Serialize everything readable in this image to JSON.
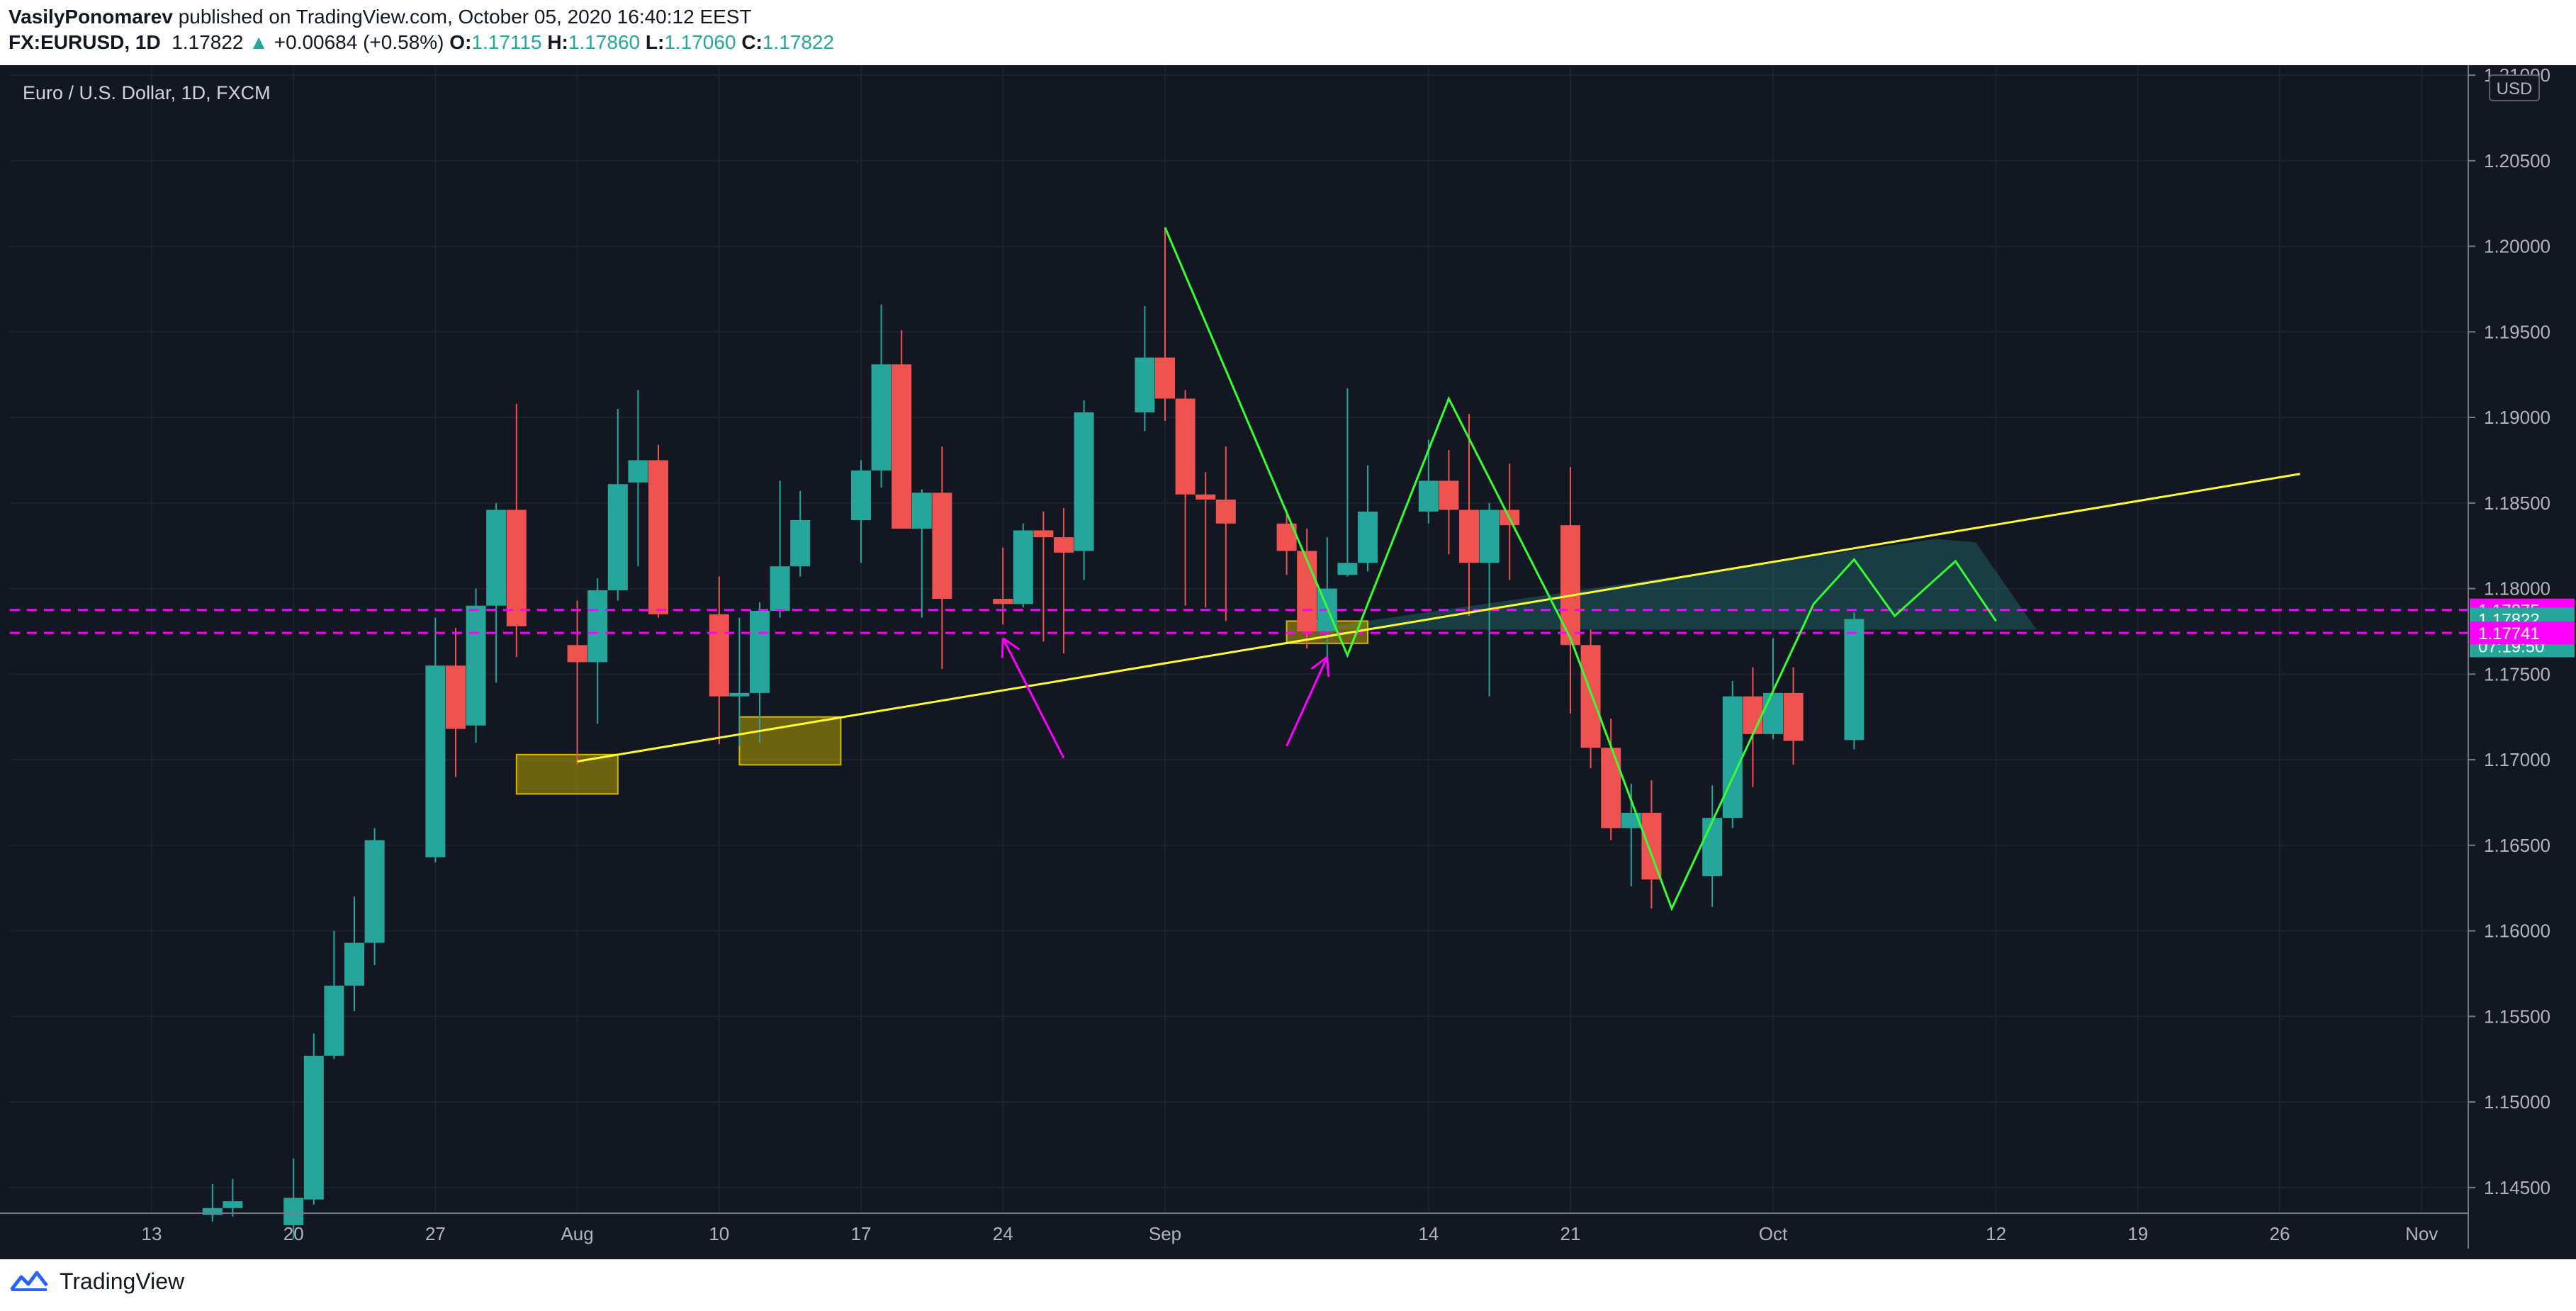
{
  "header": {
    "author": "VasilyPonomarev",
    "published_text": "published on TradingView.com, October 05, 2020 16:40:12 EEST",
    "symbol": "FX:EURUSD, 1D",
    "last": "1.17822",
    "change_arrow": "▲",
    "change": "+0.00684 (+0.58%)",
    "o_label": "O:",
    "o": "1.17115",
    "h_label": "H:",
    "h": "1.17860",
    "l_label": "L:",
    "l": "1.17060",
    "c_label": "C:",
    "c": "1.17822"
  },
  "footer": {
    "brand": "TradingView",
    "logo_icon": "tradingview-logo-icon"
  },
  "colors": {
    "background": "#131722",
    "up": "#26a69a",
    "down": "#ef5350",
    "magenta": "#ff00ff",
    "yellow": "#ffff33",
    "green": "#33ff33",
    "grid": "#1e222d",
    "text": "#b2b5be"
  },
  "chart_data": {
    "type": "candlestick",
    "title": "Euro / U.S. Dollar, 1D, FXCM",
    "currency": "USD",
    "ylim": [
      1.1435,
      1.2105
    ],
    "y_ticks": [
      "1.14500",
      "1.15000",
      "1.15500",
      "1.16000",
      "1.16500",
      "1.17000",
      "1.17500",
      "1.18000",
      "1.18500",
      "1.19000",
      "1.19500",
      "1.20000",
      "1.20500",
      "1.21000"
    ],
    "x_ticks": [
      {
        "label": "13",
        "date": "2020-07-13"
      },
      {
        "label": "20",
        "date": "2020-07-20"
      },
      {
        "label": "27",
        "date": "2020-07-27"
      },
      {
        "label": "Aug",
        "date": "2020-08-03"
      },
      {
        "label": "10",
        "date": "2020-08-10"
      },
      {
        "label": "17",
        "date": "2020-08-17"
      },
      {
        "label": "24",
        "date": "2020-08-24"
      },
      {
        "label": "Sep",
        "date": "2020-09-01"
      },
      {
        "label": "14",
        "date": "2020-09-14"
      },
      {
        "label": "21",
        "date": "2020-09-21"
      },
      {
        "label": "Oct",
        "date": "2020-10-01"
      },
      {
        "label": "12",
        "date": "2020-10-12"
      },
      {
        "label": "19",
        "date": "2020-10-19"
      },
      {
        "label": "26",
        "date": "2020-10-26"
      },
      {
        "label": "Nov",
        "date": "2020-11-02"
      }
    ],
    "candles": [
      {
        "date": "2020-07-16",
        "o": 1.1434,
        "h": 1.1452,
        "l": 1.143,
        "c": 1.1438
      },
      {
        "date": "2020-07-17",
        "o": 1.1438,
        "h": 1.1455,
        "l": 1.1433,
        "c": 1.1442
      },
      {
        "date": "2020-07-20",
        "o": 1.1428,
        "h": 1.1467,
        "l": 1.142,
        "c": 1.1444
      },
      {
        "date": "2020-07-21",
        "o": 1.1443,
        "h": 1.154,
        "l": 1.144,
        "c": 1.1527
      },
      {
        "date": "2020-07-22",
        "o": 1.1527,
        "h": 1.16,
        "l": 1.1525,
        "c": 1.1568
      },
      {
        "date": "2020-07-23",
        "o": 1.1568,
        "h": 1.162,
        "l": 1.1553,
        "c": 1.1593
      },
      {
        "date": "2020-07-24",
        "o": 1.1593,
        "h": 1.166,
        "l": 1.158,
        "c": 1.1653
      },
      {
        "date": "2020-07-27",
        "o": 1.1643,
        "h": 1.1783,
        "l": 1.164,
        "c": 1.1755
      },
      {
        "date": "2020-07-28",
        "o": 1.1755,
        "h": 1.1777,
        "l": 1.169,
        "c": 1.1718
      },
      {
        "date": "2020-07-29",
        "o": 1.172,
        "h": 1.18,
        "l": 1.171,
        "c": 1.179
      },
      {
        "date": "2020-07-30",
        "o": 1.179,
        "h": 1.185,
        "l": 1.1745,
        "c": 1.1846
      },
      {
        "date": "2020-07-31",
        "o": 1.1846,
        "h": 1.1908,
        "l": 1.176,
        "c": 1.1778
      },
      {
        "date": "2020-08-03",
        "o": 1.1767,
        "h": 1.1793,
        "l": 1.1697,
        "c": 1.1757
      },
      {
        "date": "2020-08-04",
        "o": 1.1757,
        "h": 1.1806,
        "l": 1.1721,
        "c": 1.1799
      },
      {
        "date": "2020-08-05",
        "o": 1.1799,
        "h": 1.1905,
        "l": 1.1793,
        "c": 1.1861
      },
      {
        "date": "2020-08-06",
        "o": 1.1862,
        "h": 1.1916,
        "l": 1.1813,
        "c": 1.1875
      },
      {
        "date": "2020-08-07",
        "o": 1.1875,
        "h": 1.1884,
        "l": 1.1783,
        "c": 1.1785
      },
      {
        "date": "2020-08-10",
        "o": 1.1785,
        "h": 1.1807,
        "l": 1.1709,
        "c": 1.1737
      },
      {
        "date": "2020-08-11",
        "o": 1.1737,
        "h": 1.1783,
        "l": 1.1708,
        "c": 1.1739
      },
      {
        "date": "2020-08-12",
        "o": 1.1739,
        "h": 1.1792,
        "l": 1.171,
        "c": 1.1787
      },
      {
        "date": "2020-08-13",
        "o": 1.1787,
        "h": 1.1863,
        "l": 1.1783,
        "c": 1.1813
      },
      {
        "date": "2020-08-14",
        "o": 1.1813,
        "h": 1.1857,
        "l": 1.1807,
        "c": 1.184
      },
      {
        "date": "2020-08-17",
        "o": 1.184,
        "h": 1.1875,
        "l": 1.1815,
        "c": 1.1869
      },
      {
        "date": "2020-08-18",
        "o": 1.1869,
        "h": 1.1966,
        "l": 1.1859,
        "c": 1.1931
      },
      {
        "date": "2020-08-19",
        "o": 1.1931,
        "h": 1.1951,
        "l": 1.1835,
        "c": 1.1835
      },
      {
        "date": "2020-08-20",
        "o": 1.1835,
        "h": 1.1858,
        "l": 1.1783,
        "c": 1.1856
      },
      {
        "date": "2020-08-21",
        "o": 1.1856,
        "h": 1.1883,
        "l": 1.1753,
        "c": 1.1794
      },
      {
        "date": "2020-08-24",
        "o": 1.1794,
        "h": 1.1824,
        "l": 1.1779,
        "c": 1.1791
      },
      {
        "date": "2020-08-25",
        "o": 1.1791,
        "h": 1.1838,
        "l": 1.1789,
        "c": 1.1834
      },
      {
        "date": "2020-08-26",
        "o": 1.1834,
        "h": 1.1845,
        "l": 1.1769,
        "c": 1.183
      },
      {
        "date": "2020-08-27",
        "o": 1.183,
        "h": 1.1847,
        "l": 1.1762,
        "c": 1.1821
      },
      {
        "date": "2020-08-28",
        "o": 1.1822,
        "h": 1.191,
        "l": 1.1805,
        "c": 1.1903
      },
      {
        "date": "2020-08-31",
        "o": 1.1903,
        "h": 1.1965,
        "l": 1.1892,
        "c": 1.1935
      },
      {
        "date": "2020-09-01",
        "o": 1.1935,
        "h": 1.2011,
        "l": 1.1898,
        "c": 1.1911
      },
      {
        "date": "2020-09-02",
        "o": 1.1911,
        "h": 1.1916,
        "l": 1.179,
        "c": 1.1855
      },
      {
        "date": "2020-09-03",
        "o": 1.1855,
        "h": 1.1868,
        "l": 1.1789,
        "c": 1.1852
      },
      {
        "date": "2020-09-04",
        "o": 1.1852,
        "h": 1.1883,
        "l": 1.1781,
        "c": 1.1838
      },
      {
        "date": "2020-09-07",
        "o": 1.1838,
        "h": 1.1846,
        "l": 1.1808,
        "c": 1.1822
      },
      {
        "date": "2020-09-08",
        "o": 1.1822,
        "h": 1.1835,
        "l": 1.1765,
        "c": 1.1775
      },
      {
        "date": "2020-09-09",
        "o": 1.1775,
        "h": 1.183,
        "l": 1.1753,
        "c": 1.18
      },
      {
        "date": "2020-09-10",
        "o": 1.1808,
        "h": 1.1917,
        "l": 1.1807,
        "c": 1.1815
      },
      {
        "date": "2020-09-11",
        "o": 1.1815,
        "h": 1.1872,
        "l": 1.181,
        "c": 1.1845
      },
      {
        "date": "2020-09-14",
        "o": 1.1845,
        "h": 1.1887,
        "l": 1.1838,
        "c": 1.1863
      },
      {
        "date": "2020-09-15",
        "o": 1.1863,
        "h": 1.1881,
        "l": 1.182,
        "c": 1.1846
      },
      {
        "date": "2020-09-16",
        "o": 1.1846,
        "h": 1.1902,
        "l": 1.1784,
        "c": 1.1815
      },
      {
        "date": "2020-09-17",
        "o": 1.1815,
        "h": 1.185,
        "l": 1.1737,
        "c": 1.1846
      },
      {
        "date": "2020-09-18",
        "o": 1.1846,
        "h": 1.1873,
        "l": 1.1805,
        "c": 1.1837
      },
      {
        "date": "2020-09-21",
        "o": 1.1837,
        "h": 1.1871,
        "l": 1.1727,
        "c": 1.1767
      },
      {
        "date": "2020-09-22",
        "o": 1.1767,
        "h": 1.1776,
        "l": 1.1695,
        "c": 1.1707
      },
      {
        "date": "2020-09-23",
        "o": 1.1707,
        "h": 1.1724,
        "l": 1.1653,
        "c": 1.166
      },
      {
        "date": "2020-09-24",
        "o": 1.166,
        "h": 1.1686,
        "l": 1.1626,
        "c": 1.1669
      },
      {
        "date": "2020-09-25",
        "o": 1.1669,
        "h": 1.1688,
        "l": 1.1613,
        "c": 1.163
      },
      {
        "date": "2020-09-28",
        "o": 1.1632,
        "h": 1.1685,
        "l": 1.1614,
        "c": 1.1666
      },
      {
        "date": "2020-09-29",
        "o": 1.1666,
        "h": 1.1746,
        "l": 1.166,
        "c": 1.1737
      },
      {
        "date": "2020-09-30",
        "o": 1.1737,
        "h": 1.1754,
        "l": 1.1684,
        "c": 1.1715
      },
      {
        "date": "2020-10-01",
        "o": 1.1715,
        "h": 1.1771,
        "l": 1.1712,
        "c": 1.1739
      },
      {
        "date": "2020-10-02",
        "o": 1.1739,
        "h": 1.1754,
        "l": 1.1697,
        "c": 1.1711
      },
      {
        "date": "2020-10-05",
        "o": 1.17115,
        "h": 1.1786,
        "l": 1.1706,
        "c": 1.17822
      }
    ],
    "horizontal_lines": [
      {
        "price": 1.17875,
        "color": "#ff00ff",
        "style": "dashed",
        "label": "1.17875"
      },
      {
        "price": 1.17741,
        "color": "#ff00ff",
        "style": "dashed",
        "label": "1.17741"
      }
    ],
    "price_labels": [
      {
        "text": "1.17875",
        "price": 1.17875,
        "kind": "line"
      },
      {
        "text": "1.17822",
        "price": 1.17822,
        "kind": "last"
      },
      {
        "text": "07:19:50",
        "price": 1.17822,
        "kind": "countdown"
      },
      {
        "text": "1.17741",
        "price": 1.17741,
        "kind": "line"
      }
    ],
    "trendline": {
      "color": "#ffff33",
      "points": [
        {
          "date": "2020-08-03",
          "price": 1.1699
        },
        {
          "date": "2020-10-27",
          "price": 1.1867
        }
      ]
    },
    "zigzag": {
      "color": "#33ff33",
      "points": [
        {
          "date": "2020-09-01",
          "price": 1.2011
        },
        {
          "date": "2020-09-10",
          "price": 1.1761
        },
        {
          "date": "2020-09-15",
          "price": 1.1911
        },
        {
          "date": "2020-09-21",
          "price": 1.1771
        },
        {
          "date": "2020-09-26",
          "price": 1.1613
        },
        {
          "date": "2020-10-03",
          "price": 1.1791
        },
        {
          "date": "2020-10-05",
          "price": 1.1817
        },
        {
          "date": "2020-10-07",
          "price": 1.1784
        },
        {
          "date": "2020-10-10",
          "price": 1.1816
        },
        {
          "date": "2020-10-12",
          "price": 1.1781
        }
      ]
    },
    "zones": [
      {
        "from": "2020-07-31",
        "to": "2020-08-05",
        "top": 1.1703,
        "bottom": 1.168
      },
      {
        "from": "2020-08-11",
        "to": "2020-08-16",
        "top": 1.1725,
        "bottom": 1.1697
      },
      {
        "from": "2020-09-07",
        "to": "2020-09-11",
        "top": 1.1781,
        "bottom": 1.1768
      }
    ],
    "arrows": [
      {
        "from": {
          "date": "2020-08-27",
          "price": 1.1701
        },
        "to": {
          "date": "2020-08-24",
          "price": 1.1771
        }
      },
      {
        "from": {
          "date": "2020-09-07",
          "price": 1.1708
        },
        "to": {
          "date": "2020-09-09",
          "price": 1.176
        }
      }
    ],
    "shade": {
      "color": "#26a69a",
      "points": [
        {
          "date": "2020-09-08",
          "price": 1.1776
        },
        {
          "date": "2020-10-09",
          "price": 1.1829
        },
        {
          "date": "2020-10-11",
          "price": 1.1827
        },
        {
          "date": "2020-10-14",
          "price": 1.1776
        }
      ]
    }
  }
}
